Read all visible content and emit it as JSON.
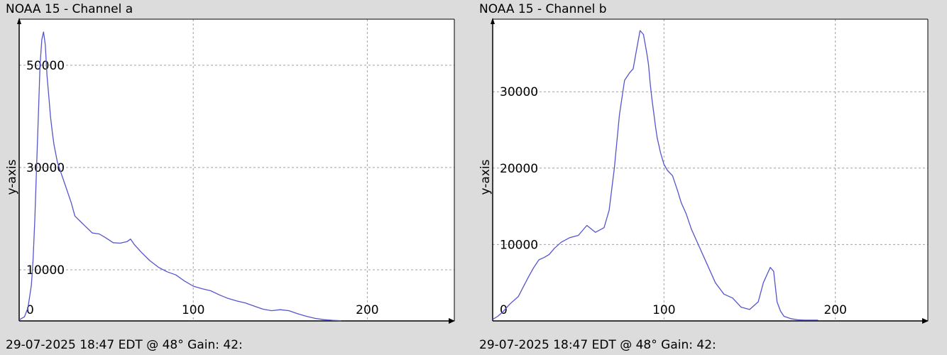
{
  "colors": {
    "background": "#dcdcdc",
    "plot_area": "#ffffff",
    "series_line": "#5555cc",
    "grid": "#a0a0a0",
    "axis": "#000000"
  },
  "chart_data": [
    {
      "type": "line",
      "title": "NOAA 15 - Channel a",
      "footer": "29-07-2025 18:47 EDT @ 48° Gain: 42:",
      "xlabel": "",
      "ylabel": "y-axis",
      "xlim": [
        0,
        250
      ],
      "ylim": [
        0,
        59000
      ],
      "x_ticks": [
        0,
        100,
        200
      ],
      "y_ticks": [
        10000,
        30000,
        50000
      ],
      "grid": true,
      "series": [
        {
          "x": [
            0,
            3,
            5,
            7,
            8,
            9,
            10,
            11,
            12,
            13,
            14,
            15,
            16,
            17,
            18,
            19,
            20,
            22,
            24,
            26,
            28,
            30,
            32,
            35,
            38,
            42,
            46,
            50,
            54,
            58,
            62,
            64,
            66,
            70,
            75,
            80,
            85,
            90,
            95,
            100,
            105,
            110,
            115,
            120,
            125,
            130,
            135,
            140,
            145,
            150,
            155,
            160,
            165,
            170,
            175,
            180,
            185
          ],
          "y": [
            200,
            800,
            2500,
            7000,
            12000,
            20000,
            30000,
            40000,
            50000,
            55000,
            56500,
            54000,
            48000,
            44000,
            40000,
            37000,
            34500,
            31000,
            29000,
            27000,
            25000,
            23000,
            20500,
            19500,
            18500,
            17200,
            17000,
            16200,
            15300,
            15200,
            15500,
            16000,
            15000,
            13500,
            11800,
            10500,
            9600,
            9000,
            7800,
            6800,
            6300,
            5900,
            5100,
            4400,
            3900,
            3500,
            2900,
            2300,
            2000,
            2200,
            2000,
            1400,
            900,
            500,
            250,
            120,
            50
          ]
        }
      ]
    },
    {
      "type": "line",
      "title": "NOAA 15 - Channel b",
      "footer": "29-07-2025 18:47 EDT @ 48° Gain: 42:",
      "xlabel": "",
      "ylabel": "y-axis",
      "xlim": [
        0,
        254
      ],
      "ylim": [
        0,
        39500
      ],
      "x_ticks": [
        0,
        100,
        200
      ],
      "y_ticks": [
        10000,
        20000,
        30000
      ],
      "grid": true,
      "series": [
        {
          "x": [
            0,
            3,
            6,
            10,
            15,
            18,
            21,
            24,
            27,
            30,
            33,
            36,
            40,
            45,
            50,
            55,
            60,
            65,
            68,
            71,
            74,
            77,
            80,
            82,
            84,
            86,
            88,
            90,
            91,
            92,
            93,
            95,
            96,
            97,
            98,
            100,
            102,
            105,
            108,
            110,
            113,
            116,
            120,
            125,
            130,
            135,
            140,
            145,
            150,
            155,
            158,
            162,
            164,
            165,
            166,
            168,
            170,
            174,
            178,
            182,
            186,
            190
          ],
          "y": [
            200,
            600,
            1200,
            2200,
            3200,
            4500,
            5800,
            7000,
            8000,
            8300,
            8700,
            9500,
            10300,
            10900,
            11200,
            12500,
            11600,
            12200,
            14500,
            20000,
            27000,
            31500,
            32500,
            33000,
            35500,
            38000,
            37500,
            35000,
            33500,
            31000,
            29000,
            25500,
            24000,
            23000,
            22000,
            20500,
            19700,
            19000,
            17000,
            15500,
            14000,
            12000,
            10000,
            7500,
            5000,
            3500,
            3000,
            1800,
            1500,
            2500,
            5000,
            7000,
            6500,
            4500,
            2500,
            1300,
            600,
            300,
            150,
            100,
            100,
            100
          ]
        }
      ]
    }
  ]
}
